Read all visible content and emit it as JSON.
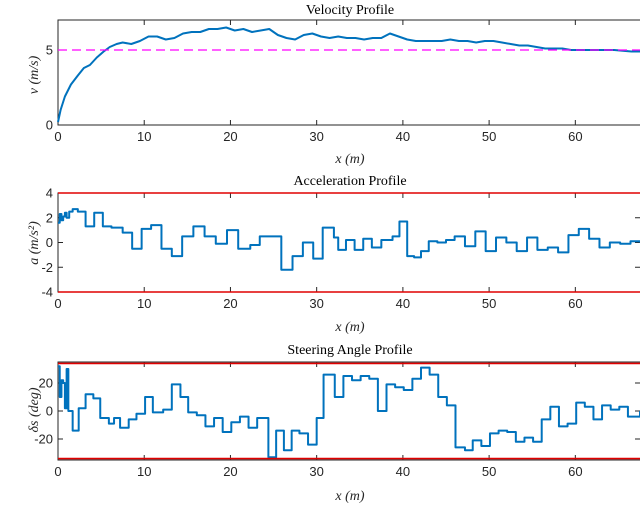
{
  "chart_data": [
    {
      "type": "line",
      "title": "Velocity Profile",
      "xlabel": "x (m)",
      "ylabel": "v (m/s)",
      "xlim": [
        0,
        67.5
      ],
      "ylim": [
        0,
        7
      ],
      "xticks": [
        "0",
        "10",
        "20",
        "30",
        "40",
        "50",
        "60"
      ],
      "yticks": [
        "0",
        "5"
      ],
      "grid": false,
      "series": [
        {
          "color": "#0072BD",
          "style": "solid",
          "x": [
            0,
            0.3,
            0.8,
            1.5,
            2.3,
            3,
            3.7,
            4.5,
            5.3,
            6,
            6.8,
            7.5,
            8.5,
            9.5,
            10.5,
            11.5,
            12.5,
            13.5,
            14.5,
            15.5,
            16.5,
            17.5,
            18.5,
            19.5,
            20.5,
            21.5,
            22.5,
            23.5,
            24.5,
            25.5,
            26.5,
            27.5,
            28.5,
            29.5,
            30.5,
            31.5,
            32.5,
            33.5,
            34.5,
            35.5,
            36.5,
            37.5,
            38.5,
            39.5,
            40.5,
            41.5,
            42.5,
            43.5,
            44.5,
            45.5,
            46.5,
            47.5,
            48.5,
            49.5,
            50.5,
            51.5,
            52.5,
            53.5,
            54.5,
            55.5,
            56.5,
            57.5,
            58.5,
            59.5,
            60.5,
            61.5,
            62.5,
            63.5,
            64.5,
            65.5,
            66.5,
            67.5
          ],
          "y": [
            0.2,
            1.0,
            1.9,
            2.7,
            3.3,
            3.8,
            4.0,
            4.5,
            4.9,
            5.2,
            5.4,
            5.5,
            5.4,
            5.6,
            5.9,
            5.9,
            5.7,
            5.8,
            6.1,
            6.2,
            6.2,
            6.4,
            6.4,
            6.5,
            6.3,
            6.4,
            6.2,
            6.3,
            6.4,
            6.0,
            5.8,
            5.7,
            6.0,
            6.1,
            5.9,
            5.8,
            5.9,
            5.8,
            5.8,
            5.7,
            5.8,
            5.8,
            6.1,
            5.9,
            5.7,
            5.6,
            5.6,
            5.6,
            5.6,
            5.7,
            5.6,
            5.6,
            5.5,
            5.6,
            5.6,
            5.5,
            5.4,
            5.3,
            5.3,
            5.2,
            5.1,
            5.1,
            5.1,
            5.0,
            5.0,
            5.0,
            5.0,
            5.0,
            5.0,
            4.95,
            4.9,
            4.9
          ]
        },
        {
          "color": "#FF00FF",
          "style": "dashed",
          "x": [
            0,
            67.5
          ],
          "y": [
            5,
            5
          ]
        }
      ]
    },
    {
      "type": "line",
      "title": "Acceleration Profile",
      "xlabel": "x (m)",
      "ylabel": "a (m/s²)",
      "xlim": [
        0,
        67.5
      ],
      "ylim": [
        -4,
        4
      ],
      "xticks": [
        "0",
        "10",
        "20",
        "30",
        "40",
        "50",
        "60"
      ],
      "yticks": [
        "-4",
        "-2",
        "0",
        "2",
        "4"
      ],
      "grid": false,
      "series": [
        {
          "color": "#0072BD",
          "style": "stairs",
          "x": [
            0,
            0.2,
            0.4,
            0.6,
            0.8,
            1.0,
            1.3,
            1.7,
            2.3,
            3.2,
            4.2,
            5.2,
            6.2,
            7.5,
            8.6,
            9.7,
            10.8,
            12.0,
            13.2,
            14.4,
            15.7,
            17.0,
            18.3,
            19.6,
            20.9,
            22.3,
            23.4,
            24.6,
            25.9,
            27.2,
            28.4,
            29.6,
            30.7,
            32.0,
            32.5,
            33.4,
            34.4,
            35.4,
            36.4,
            37.5,
            38.8,
            39.6,
            40.5,
            41.3,
            42.1,
            43.0,
            44.0,
            45.0,
            46.0,
            47.2,
            48.4,
            49.6,
            50.8,
            52.0,
            53.2,
            54.4,
            55.6,
            56.8,
            58.0,
            59.2,
            60.4,
            61.6,
            62.8,
            64.0,
            65.2,
            66.4,
            67.5
          ],
          "y": [
            1.6,
            2.3,
            1.8,
            2.1,
            2.4,
            2.0,
            2.5,
            2.7,
            2.5,
            1.3,
            2.4,
            1.3,
            1.2,
            0.8,
            -0.5,
            1.1,
            1.4,
            -0.5,
            -1.1,
            0.5,
            1.3,
            0.5,
            -0.1,
            1.0,
            -0.5,
            -0.2,
            0.5,
            0.5,
            -2.2,
            -1.1,
            0.0,
            -1.3,
            1.2,
            0.4,
            -0.6,
            0.2,
            -0.6,
            0.3,
            -0.4,
            0.2,
            0.5,
            1.7,
            -1.1,
            -1.2,
            -0.7,
            0.1,
            0.0,
            0.2,
            0.5,
            -0.3,
            0.9,
            -0.7,
            0.4,
            0.0,
            -0.7,
            0.4,
            -0.6,
            -0.4,
            -0.8,
            0.6,
            1.1,
            0.3,
            -0.4,
            0.0,
            -0.1,
            0.1,
            0.0
          ]
        },
        {
          "color": "#E00000",
          "style": "solid",
          "x": [
            0,
            67.5
          ],
          "y": [
            4,
            4
          ]
        },
        {
          "color": "#E00000",
          "style": "solid",
          "x": [
            0,
            67.5
          ],
          "y": [
            -4,
            -4
          ]
        }
      ]
    },
    {
      "type": "line",
      "title": "Steering Angle Profile",
      "xlabel": "x (m)",
      "ylabel": "δs (deg)",
      "xlim": [
        0,
        67.5
      ],
      "ylim": [
        -35,
        35
      ],
      "xticks": [
        "0",
        "10",
        "20",
        "30",
        "40",
        "50",
        "60"
      ],
      "yticks": [
        "-20",
        "0",
        "20"
      ],
      "grid": false,
      "series": [
        {
          "color": "#0072BD",
          "style": "stairs",
          "x": [
            0,
            0.2,
            0.4,
            0.6,
            0.8,
            1.0,
            1.2,
            1.7,
            2.4,
            3.2,
            4.1,
            4.9,
            5.9,
            6.5,
            7.2,
            8.2,
            9.1,
            10.1,
            11.0,
            12.2,
            13.2,
            14.2,
            15.1,
            16.1,
            17.1,
            18.1,
            19.1,
            20.1,
            21.1,
            22.1,
            23.1,
            24.4,
            25.3,
            26.2,
            27.1,
            28.0,
            29.0,
            30.0,
            30.8,
            32.1,
            33.1,
            34.1,
            35.1,
            36.1,
            37.1,
            38.1,
            39.1,
            40.1,
            41.1,
            42.1,
            43.1,
            44.1,
            45.1,
            46.1,
            47.2,
            48.1,
            49.1,
            50.1,
            51.1,
            52.1,
            53.1,
            54.1,
            55.1,
            56.1,
            57.1,
            58.1,
            59.1,
            60.1,
            61.1,
            62.1,
            63.1,
            64.1,
            65.1,
            66.1,
            67.5
          ],
          "y": [
            32,
            10,
            22,
            20,
            2,
            30,
            0,
            -14,
            2,
            12,
            9,
            -5,
            -9,
            -5,
            -12,
            -6,
            -2,
            10,
            -1,
            1,
            19,
            10,
            -1,
            -3,
            -11,
            -5,
            -15,
            -8,
            -4,
            -12,
            -5,
            -33,
            -14,
            -28,
            -14,
            -16,
            -24,
            -5,
            26,
            10,
            25,
            22,
            25,
            23,
            0,
            19,
            17,
            15,
            23,
            31,
            26,
            10,
            4,
            -26,
            -28,
            -21,
            -25,
            -16,
            -14,
            -15,
            -22,
            -19,
            -22,
            -6,
            3,
            -11,
            -9,
            6,
            3,
            -6,
            4,
            1,
            3,
            -4,
            0
          ]
        },
        {
          "color": "#E00000",
          "style": "solid",
          "x": [
            0,
            67.5
          ],
          "y": [
            34,
            34
          ]
        },
        {
          "color": "#E00000",
          "style": "solid",
          "x": [
            0,
            67.5
          ],
          "y": [
            -34,
            -34
          ]
        }
      ]
    }
  ]
}
